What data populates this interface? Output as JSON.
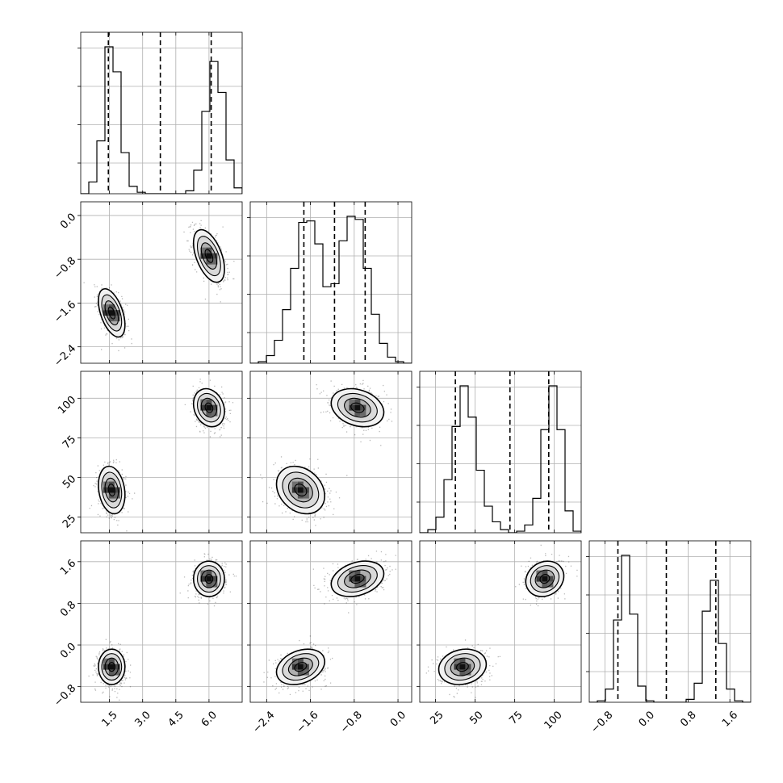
{
  "figure": {
    "name": "corner-plot",
    "background": "#ffffff",
    "grid": true,
    "grid_color": "#b0b0b0",
    "line_color": "#000000"
  },
  "chart_data": {
    "type": "corner",
    "params": [
      {
        "id": "p1",
        "lim": [
          0.2,
          7.5
        ],
        "ticks": [
          "1.5",
          "3.0",
          "4.5",
          "6.0"
        ],
        "tick_values": [
          1.5,
          3.0,
          4.5,
          6.0
        ]
      },
      {
        "id": "p2",
        "lim": [
          -2.7,
          0.25
        ],
        "ticks": [
          "−2.4",
          "−1.6",
          "−0.8",
          "0.0"
        ],
        "tick_values": [
          -2.4,
          -1.6,
          -0.8,
          0.0
        ]
      },
      {
        "id": "p3",
        "lim": [
          15,
          117
        ],
        "ticks": [
          "25",
          "50",
          "75",
          "100"
        ],
        "tick_values": [
          25,
          50,
          75,
          100
        ]
      },
      {
        "id": "p4",
        "lim": [
          -1.1,
          2.0
        ],
        "ticks": [
          "−0.8",
          "0.0",
          "0.8",
          "1.6"
        ],
        "tick_values": [
          -0.8,
          0.0,
          0.8,
          1.6
        ]
      }
    ],
    "histograms": [
      {
        "param": "p1",
        "edges": [
          0.2,
          0.565,
          0.93,
          1.295,
          1.66,
          2.025,
          2.39,
          2.755,
          3.12,
          3.485,
          3.85,
          4.215,
          4.58,
          4.945,
          5.31,
          5.675,
          6.04,
          6.405,
          6.77,
          7.135,
          7.5
        ],
        "counts": [
          0.0,
          0.08,
          0.36,
          1.0,
          0.83,
          0.28,
          0.05,
          0.01,
          0.0,
          0.0,
          0.0,
          0.0,
          0.0,
          0.02,
          0.16,
          0.56,
          0.9,
          0.69,
          0.23,
          0.04
        ],
        "quantiles": [
          1.45,
          3.8,
          6.1
        ]
      },
      {
        "param": "p2",
        "edges": [
          -2.7,
          -2.5525,
          -2.405,
          -2.2575,
          -2.11,
          -1.9625,
          -1.815,
          -1.6675,
          -1.52,
          -1.3725,
          -1.225,
          -1.0775,
          -0.93,
          -0.7825,
          -0.635,
          -0.4875,
          -0.34,
          -0.1925,
          -0.045,
          0.1025,
          0.25
        ],
        "counts": [
          0.0,
          0.01,
          0.05,
          0.15,
          0.35,
          0.62,
          0.92,
          0.93,
          0.78,
          0.5,
          0.52,
          0.8,
          0.96,
          0.94,
          0.62,
          0.32,
          0.13,
          0.04,
          0.01,
          0.0
        ],
        "quantiles": [
          -1.72,
          -1.16,
          -0.6
        ]
      },
      {
        "param": "p3",
        "edges": [
          15,
          20.1,
          25.2,
          30.3,
          35.4,
          40.5,
          45.6,
          50.7,
          55.8,
          60.9,
          66.0,
          71.1,
          76.2,
          81.3,
          86.4,
          91.5,
          96.6,
          101.7,
          106.8,
          111.9,
          117
        ],
        "counts": [
          0.0,
          0.02,
          0.1,
          0.34,
          0.68,
          0.94,
          0.74,
          0.4,
          0.17,
          0.07,
          0.02,
          0.0,
          0.01,
          0.05,
          0.22,
          0.66,
          0.94,
          0.66,
          0.14,
          0.01
        ],
        "quantiles": [
          37.5,
          72.0,
          96.5
        ]
      },
      {
        "param": "p4",
        "edges": [
          -1.1,
          -0.945,
          -0.79,
          -0.635,
          -0.48,
          -0.325,
          -0.17,
          -0.015,
          0.14,
          0.295,
          0.45,
          0.605,
          0.76,
          0.915,
          1.07,
          1.225,
          1.38,
          1.535,
          1.69,
          1.845,
          2.0
        ],
        "counts": [
          0.0,
          0.01,
          0.09,
          0.56,
          1.0,
          0.6,
          0.11,
          0.01,
          0.0,
          0.0,
          0.0,
          0.0,
          0.02,
          0.13,
          0.62,
          0.83,
          0.4,
          0.09,
          0.01,
          0.0
        ],
        "quantiles": [
          -0.55,
          0.38,
          1.33
        ]
      }
    ],
    "modes": [
      {
        "weight": 0.5,
        "p1": {
          "mean": 1.6,
          "sd": 0.3
        },
        "p2": {
          "mean": -1.78,
          "sd": 0.22
        },
        "p3": {
          "mean": 42.0,
          "sd": 7.5
        },
        "p4": {
          "mean": -0.42,
          "sd": 0.17
        }
      },
      {
        "weight": 0.5,
        "p1": {
          "mean": 6.0,
          "sd": 0.35
        },
        "p2": {
          "mean": -0.74,
          "sd": 0.24
        },
        "p3": {
          "mean": 94.0,
          "sd": 6.0
        },
        "p4": {
          "mean": 1.27,
          "sd": 0.17
        }
      }
    ],
    "correlation": {
      "p1_p2": -0.5,
      "p1_p3": -0.2,
      "p1_p4": 0.0,
      "p2_p3": -0.25,
      "p2_p4": 0.3,
      "p3_p4": 0.15
    },
    "contour_levels_sigma": [
      0.5,
      1.0,
      1.5,
      2.0
    ],
    "lower_tick_rotation": 45,
    "histogram_tick_labels": false
  }
}
